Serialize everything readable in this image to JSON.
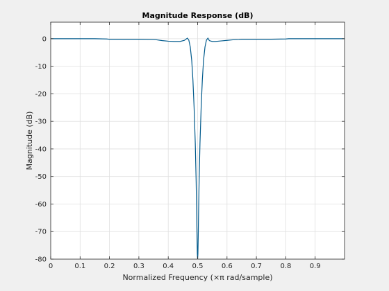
{
  "chart_data": {
    "type": "line",
    "title": "Magnitude Response (dB)",
    "xlabel": "Normalized Frequency (×π rad/sample)",
    "ylabel": "Magnitude (dB)",
    "xlim": [
      0,
      1
    ],
    "ylim": [
      -80,
      6
    ],
    "xticks": [
      0,
      0.1,
      0.2,
      0.3,
      0.4,
      0.5,
      0.6,
      0.7,
      0.8,
      0.9
    ],
    "xtick_labels": [
      "0",
      "0.1",
      "0.2",
      "0.3",
      "0.4",
      "0.5",
      "0.6",
      "0.7",
      "0.8",
      "0.9"
    ],
    "yticks": [
      0,
      -10,
      -20,
      -30,
      -40,
      -50,
      -60,
      -70,
      -80
    ],
    "ytick_labels": [
      "0",
      "-10",
      "-20",
      "-30",
      "-40",
      "-50",
      "-60",
      "-70",
      "-80"
    ],
    "grid": true,
    "line_color": "#005a8c",
    "series": [
      {
        "x": [
          0,
          0.05,
          0.1,
          0.15,
          0.19,
          0.2,
          0.25,
          0.3,
          0.35,
          0.36,
          0.38,
          0.4,
          0.42,
          0.44,
          0.455,
          0.465,
          0.47,
          0.475,
          0.48,
          0.484,
          0.488,
          0.492,
          0.495,
          0.497,
          0.498,
          0.499,
          0.5,
          0.501,
          0.502,
          0.503,
          0.505,
          0.508,
          0.512,
          0.516,
          0.52,
          0.525,
          0.53,
          0.535,
          0.54,
          0.55,
          0.56,
          0.58,
          0.6,
          0.62,
          0.64,
          0.65,
          0.7,
          0.75,
          0.8,
          0.81,
          0.85,
          0.9,
          0.95,
          1.0
        ],
        "y": [
          0,
          0,
          0,
          0,
          -0.1,
          -0.2,
          -0.2,
          -0.2,
          -0.3,
          -0.4,
          -0.7,
          -0.9,
          -1.0,
          -1.0,
          -0.6,
          0.2,
          -0.5,
          -3,
          -8,
          -15,
          -25,
          -38,
          -52,
          -65,
          -72,
          -78,
          -80,
          -78,
          -72,
          -65,
          -52,
          -38,
          -25,
          -15,
          -8,
          -3,
          -0.5,
          0.2,
          -0.7,
          -1.0,
          -1.0,
          -0.8,
          -0.6,
          -0.4,
          -0.3,
          -0.2,
          -0.2,
          -0.2,
          -0.1,
          0,
          0,
          0,
          0,
          0
        ]
      }
    ]
  }
}
